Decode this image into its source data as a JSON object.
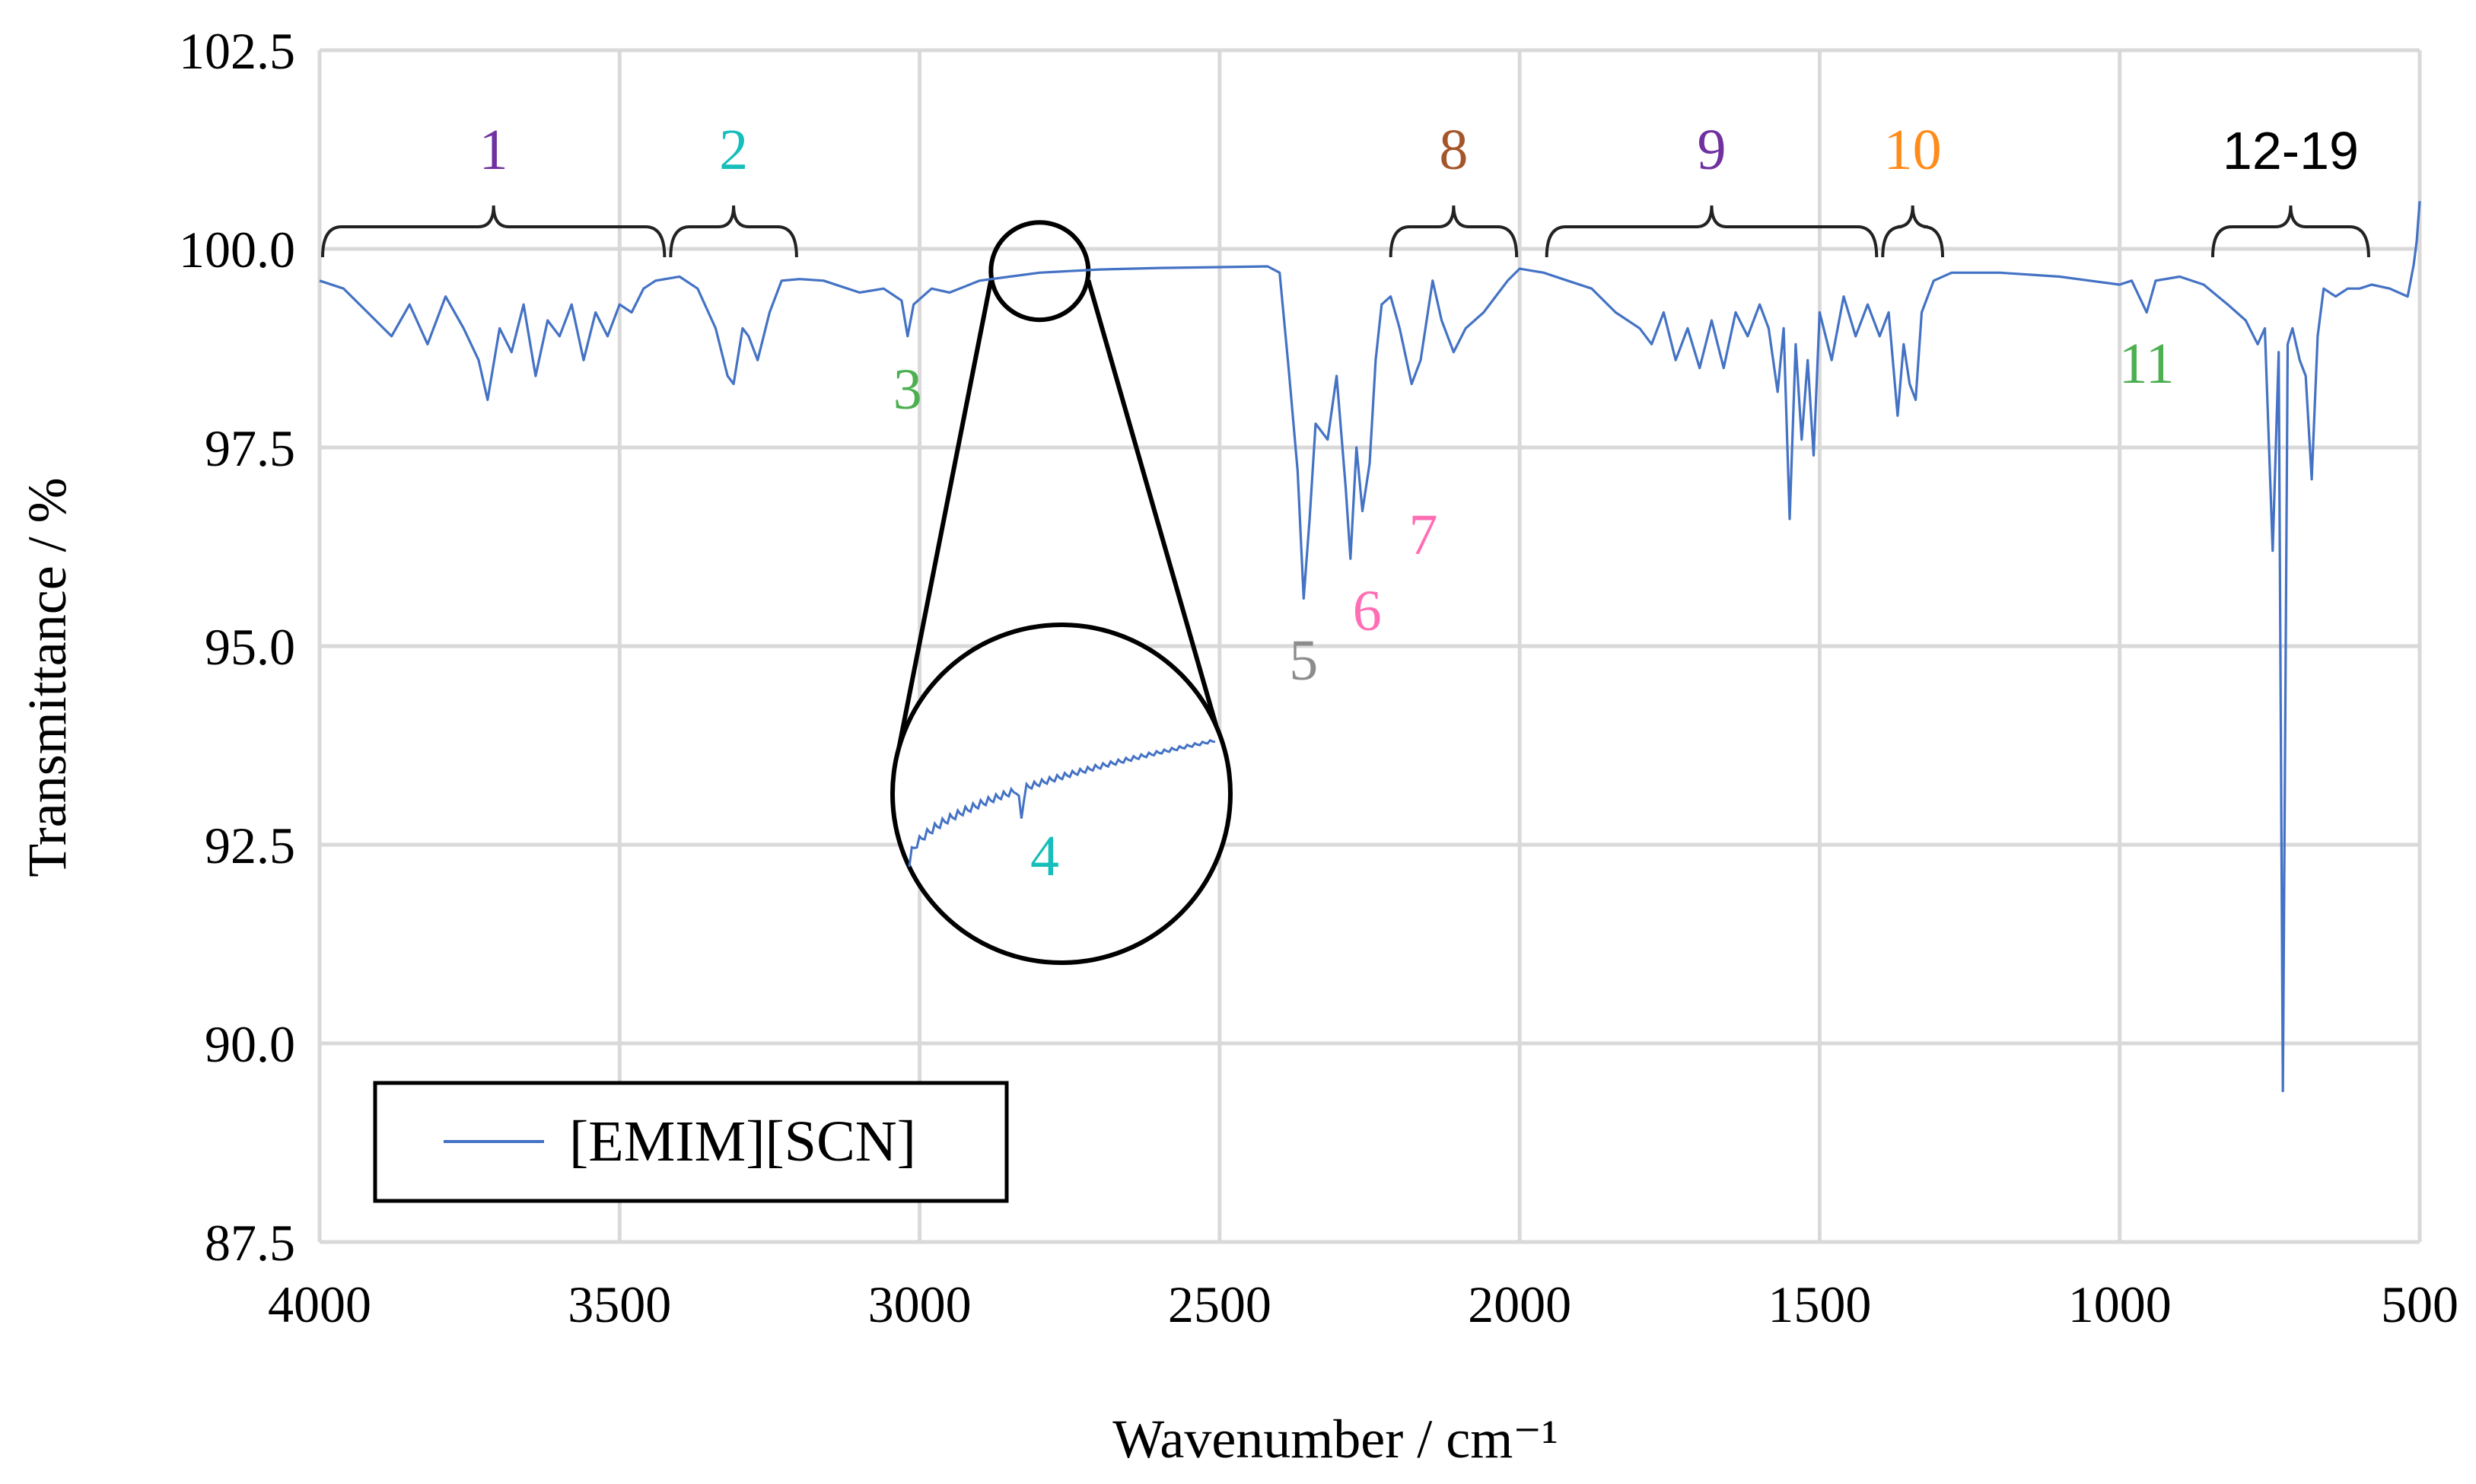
{
  "chart_data": {
    "type": "line",
    "title": "",
    "xlabel": "Wavenumber / cm⁻¹",
    "ylabel": "Transmittance / %",
    "xlim": [
      4000,
      500
    ],
    "ylim": [
      87.5,
      102.5
    ],
    "x_reversed": true,
    "x_ticks": [
      "4000",
      "3500",
      "3000",
      "2500",
      "2000",
      "1500",
      "1000",
      "500"
    ],
    "y_ticks": [
      "87.5",
      "90.0",
      "92.5",
      "95.0",
      "97.5",
      "100.0",
      "102.5"
    ],
    "legend": {
      "position": "bottom-left",
      "entries": [
        "[EMIM][SCN]"
      ]
    },
    "series": [
      {
        "name": "[EMIM][SCN]",
        "color": "#4472c4",
        "points": [
          [
            4000,
            99.6
          ],
          [
            3960,
            99.5
          ],
          [
            3920,
            99.2
          ],
          [
            3880,
            98.9
          ],
          [
            3850,
            99.3
          ],
          [
            3820,
            98.8
          ],
          [
            3790,
            99.4
          ],
          [
            3760,
            99.0
          ],
          [
            3735,
            98.6
          ],
          [
            3720,
            98.1
          ],
          [
            3700,
            99.0
          ],
          [
            3680,
            98.7
          ],
          [
            3660,
            99.3
          ],
          [
            3640,
            98.4
          ],
          [
            3620,
            99.1
          ],
          [
            3600,
            98.9
          ],
          [
            3580,
            99.3
          ],
          [
            3560,
            98.6
          ],
          [
            3540,
            99.2
          ],
          [
            3520,
            98.9
          ],
          [
            3500,
            99.3
          ],
          [
            3480,
            99.2
          ],
          [
            3460,
            99.5
          ],
          [
            3440,
            99.6
          ],
          [
            3400,
            99.65
          ],
          [
            3370,
            99.5
          ],
          [
            3340,
            99.0
          ],
          [
            3320,
            98.4
          ],
          [
            3310,
            98.3
          ],
          [
            3295,
            99.0
          ],
          [
            3285,
            98.9
          ],
          [
            3270,
            98.6
          ],
          [
            3250,
            99.2
          ],
          [
            3230,
            99.6
          ],
          [
            3200,
            99.62
          ],
          [
            3160,
            99.6
          ],
          [
            3100,
            99.45
          ],
          [
            3060,
            99.5
          ],
          [
            3030,
            99.35
          ],
          [
            3020,
            98.9
          ],
          [
            3010,
            99.3
          ],
          [
            2980,
            99.5
          ],
          [
            2950,
            99.45
          ],
          [
            2900,
            99.6
          ],
          [
            2850,
            99.65
          ],
          [
            2800,
            99.7
          ],
          [
            2750,
            99.72
          ],
          [
            2700,
            99.74
          ],
          [
            2600,
            99.76
          ],
          [
            2500,
            99.77
          ],
          [
            2420,
            99.78
          ],
          [
            2400,
            99.7
          ],
          [
            2385,
            98.5
          ],
          [
            2370,
            97.2
          ],
          [
            2360,
            95.6
          ],
          [
            2350,
            96.6
          ],
          [
            2340,
            97.8
          ],
          [
            2320,
            97.6
          ],
          [
            2305,
            98.4
          ],
          [
            2290,
            97.0
          ],
          [
            2282,
            96.1
          ],
          [
            2272,
            97.5
          ],
          [
            2262,
            96.7
          ],
          [
            2250,
            97.3
          ],
          [
            2240,
            98.6
          ],
          [
            2230,
            99.3
          ],
          [
            2215,
            99.4
          ],
          [
            2200,
            99.0
          ],
          [
            2180,
            98.3
          ],
          [
            2165,
            98.6
          ],
          [
            2145,
            99.6
          ],
          [
            2130,
            99.1
          ],
          [
            2110,
            98.7
          ],
          [
            2090,
            99.0
          ],
          [
            2060,
            99.2
          ],
          [
            2040,
            99.4
          ],
          [
            2020,
            99.6
          ],
          [
            2000,
            99.75
          ],
          [
            1960,
            99.7
          ],
          [
            1920,
            99.6
          ],
          [
            1880,
            99.5
          ],
          [
            1840,
            99.2
          ],
          [
            1800,
            99.0
          ],
          [
            1780,
            98.8
          ],
          [
            1760,
            99.2
          ],
          [
            1740,
            98.6
          ],
          [
            1720,
            99.0
          ],
          [
            1700,
            98.5
          ],
          [
            1680,
            99.1
          ],
          [
            1660,
            98.5
          ],
          [
            1640,
            99.2
          ],
          [
            1620,
            98.9
          ],
          [
            1600,
            99.3
          ],
          [
            1585,
            99.0
          ],
          [
            1570,
            98.2
          ],
          [
            1560,
            99.0
          ],
          [
            1550,
            96.6
          ],
          [
            1540,
            98.8
          ],
          [
            1530,
            97.6
          ],
          [
            1520,
            98.6
          ],
          [
            1510,
            97.4
          ],
          [
            1500,
            99.2
          ],
          [
            1480,
            98.6
          ],
          [
            1460,
            99.4
          ],
          [
            1440,
            98.9
          ],
          [
            1420,
            99.3
          ],
          [
            1400,
            98.9
          ],
          [
            1385,
            99.2
          ],
          [
            1370,
            97.9
          ],
          [
            1360,
            98.8
          ],
          [
            1350,
            98.3
          ],
          [
            1340,
            98.1
          ],
          [
            1330,
            99.2
          ],
          [
            1310,
            99.6
          ],
          [
            1280,
            99.7
          ],
          [
            1200,
            99.7
          ],
          [
            1100,
            99.65
          ],
          [
            1050,
            99.6
          ],
          [
            1000,
            99.55
          ],
          [
            980,
            99.6
          ],
          [
            955,
            99.2
          ],
          [
            940,
            99.6
          ],
          [
            900,
            99.65
          ],
          [
            860,
            99.55
          ],
          [
            820,
            99.3
          ],
          [
            790,
            99.1
          ],
          [
            770,
            98.8
          ],
          [
            758,
            99.0
          ],
          [
            745,
            96.2
          ],
          [
            735,
            98.7
          ],
          [
            728,
            89.4
          ],
          [
            720,
            98.8
          ],
          [
            712,
            99.0
          ],
          [
            700,
            98.6
          ],
          [
            690,
            98.4
          ],
          [
            680,
            97.1
          ],
          [
            670,
            98.9
          ],
          [
            660,
            99.5
          ],
          [
            640,
            99.4
          ],
          [
            620,
            99.5
          ],
          [
            600,
            99.5
          ],
          [
            580,
            99.55
          ],
          [
            550,
            99.5
          ],
          [
            520,
            99.4
          ],
          [
            510,
            99.8
          ],
          [
            505,
            100.1
          ],
          [
            500,
            100.6
          ]
        ]
      }
    ],
    "annotations": [
      {
        "label": "1",
        "color": "#7030a0",
        "range": [
          4000,
          3420
        ]
      },
      {
        "label": "2",
        "color": "#17bebb",
        "range": [
          3420,
          3200
        ]
      },
      {
        "label": "3",
        "color": "#4caf50",
        "at": [
          3020,
          97.9
        ]
      },
      {
        "label": "4",
        "color": "#17bebb",
        "zoom_at": 2800
      },
      {
        "label": "5",
        "color": "#8c8c8c",
        "at": [
          2360,
          95.0
        ]
      },
      {
        "label": "6",
        "color": "#ff6eb4",
        "at": [
          2282,
          95.5
        ]
      },
      {
        "label": "7",
        "color": "#ff6eb4",
        "at": [
          2262,
          96.3
        ]
      },
      {
        "label": "8",
        "color": "#a5552a",
        "range": [
          2220,
          2000
        ]
      },
      {
        "label": "9",
        "color": "#7030a0",
        "range": [
          1960,
          1400
        ]
      },
      {
        "label": "10",
        "color": "#ff8c1a",
        "range": [
          1400,
          1290
        ]
      },
      {
        "label": "11",
        "color": "#4caf50",
        "at": [
          955,
          98.6
        ]
      },
      {
        "label": "12-19",
        "color": "#000000",
        "range": [
          850,
          580
        ]
      }
    ]
  }
}
